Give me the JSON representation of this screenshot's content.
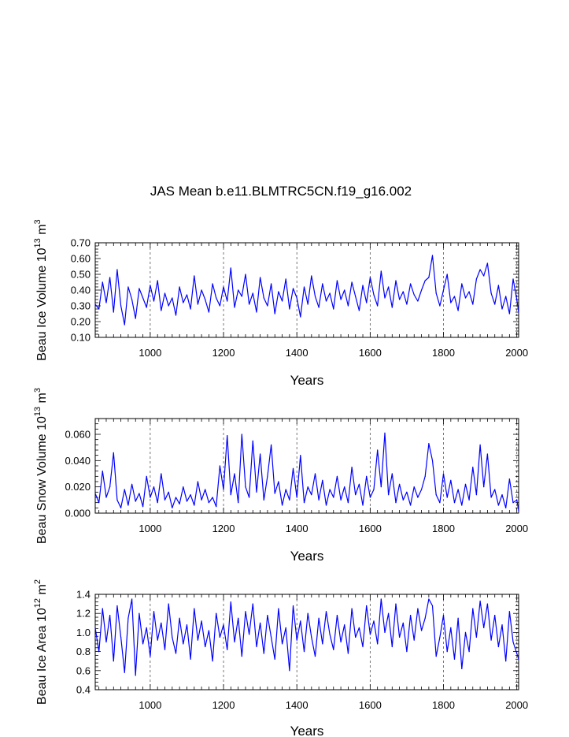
{
  "chart_data": {
    "title": "JAS Mean b.e11.BLMTRC5CN.f19_g16.002",
    "xrange": [
      850,
      2005
    ],
    "panels": [
      {
        "id": "ice-volume",
        "type": "line",
        "ylabel": {
          "base": "Beau Ice Volume 10",
          "exp": "13",
          "unit": " m",
          "unit_exp": "3"
        },
        "xlabel": "Years",
        "ylim": [
          0.1,
          0.7
        ],
        "yticks": [
          0.1,
          0.2,
          0.3,
          0.4,
          0.5,
          0.6,
          0.7
        ],
        "ytick_labels": [
          "0.10",
          "0.20",
          "0.30",
          "0.40",
          "0.50",
          "0.60",
          "0.70"
        ],
        "xticks": [
          1000,
          1200,
          1400,
          1600,
          1800,
          2000
        ],
        "xtick_labels": [
          "1000",
          "1200",
          "1400",
          "1600",
          "1800",
          "2000"
        ],
        "gridlines_x": [
          1000,
          1200,
          1400,
          1600,
          1800,
          2000
        ],
        "series": {
          "name": "Beau Ice Volume",
          "color": "#0000ff",
          "x": [
            850,
            860,
            870,
            880,
            890,
            900,
            910,
            920,
            930,
            940,
            950,
            960,
            970,
            980,
            990,
            1000,
            1010,
            1020,
            1030,
            1040,
            1050,
            1060,
            1070,
            1080,
            1090,
            1100,
            1110,
            1120,
            1130,
            1140,
            1150,
            1160,
            1170,
            1180,
            1190,
            1200,
            1210,
            1220,
            1230,
            1240,
            1250,
            1260,
            1270,
            1280,
            1290,
            1300,
            1310,
            1320,
            1330,
            1340,
            1350,
            1360,
            1370,
            1380,
            1390,
            1400,
            1410,
            1420,
            1430,
            1440,
            1450,
            1460,
            1470,
            1480,
            1490,
            1500,
            1510,
            1520,
            1530,
            1540,
            1550,
            1560,
            1570,
            1580,
            1590,
            1600,
            1610,
            1620,
            1630,
            1640,
            1650,
            1660,
            1670,
            1680,
            1690,
            1700,
            1710,
            1720,
            1730,
            1740,
            1750,
            1760,
            1770,
            1780,
            1790,
            1800,
            1810,
            1820,
            1830,
            1840,
            1850,
            1860,
            1870,
            1880,
            1890,
            1900,
            1910,
            1920,
            1930,
            1940,
            1950,
            1960,
            1970,
            1980,
            1990,
            2000,
            2005
          ],
          "y": [
            0.31,
            0.28,
            0.45,
            0.32,
            0.48,
            0.26,
            0.53,
            0.3,
            0.18,
            0.42,
            0.34,
            0.22,
            0.41,
            0.35,
            0.29,
            0.43,
            0.33,
            0.46,
            0.27,
            0.38,
            0.3,
            0.35,
            0.24,
            0.42,
            0.32,
            0.37,
            0.28,
            0.49,
            0.31,
            0.4,
            0.34,
            0.26,
            0.44,
            0.35,
            0.3,
            0.42,
            0.33,
            0.54,
            0.29,
            0.4,
            0.36,
            0.5,
            0.31,
            0.38,
            0.26,
            0.48,
            0.35,
            0.3,
            0.44,
            0.25,
            0.39,
            0.33,
            0.47,
            0.28,
            0.41,
            0.35,
            0.23,
            0.42,
            0.31,
            0.49,
            0.36,
            0.29,
            0.44,
            0.33,
            0.38,
            0.28,
            0.46,
            0.34,
            0.4,
            0.3,
            0.45,
            0.36,
            0.27,
            0.43,
            0.32,
            0.48,
            0.37,
            0.3,
            0.52,
            0.35,
            0.42,
            0.29,
            0.46,
            0.34,
            0.39,
            0.31,
            0.44,
            0.37,
            0.33,
            0.4,
            0.46,
            0.48,
            0.62,
            0.38,
            0.3,
            0.4,
            0.5,
            0.32,
            0.36,
            0.27,
            0.44,
            0.35,
            0.39,
            0.31,
            0.47,
            0.53,
            0.49,
            0.57,
            0.38,
            0.31,
            0.43,
            0.28,
            0.36,
            0.25,
            0.47,
            0.34,
            0.26
          ]
        }
      },
      {
        "id": "snow-volume",
        "type": "line",
        "ylabel": {
          "base": "Beau Snow Volume 10",
          "exp": "13",
          "unit": " m",
          "unit_exp": "3"
        },
        "xlabel": "Years",
        "ylim": [
          0.0,
          0.072
        ],
        "yticks": [
          0.0,
          0.02,
          0.04,
          0.06
        ],
        "ytick_labels": [
          "0.000",
          "0.020",
          "0.040",
          "0.060"
        ],
        "xticks": [
          1000,
          1200,
          1400,
          1600,
          1800,
          2000
        ],
        "xtick_labels": [
          "1000",
          "1200",
          "1400",
          "1600",
          "1800",
          "2000"
        ],
        "gridlines_x": [
          1000,
          1200,
          1400,
          1600,
          1800,
          2000
        ],
        "series": {
          "name": "Beau Snow Volume",
          "color": "#0000ff",
          "x": [
            850,
            860,
            870,
            880,
            890,
            900,
            910,
            920,
            930,
            940,
            950,
            960,
            970,
            980,
            990,
            1000,
            1010,
            1020,
            1030,
            1040,
            1050,
            1060,
            1070,
            1080,
            1090,
            1100,
            1110,
            1120,
            1130,
            1140,
            1150,
            1160,
            1170,
            1180,
            1190,
            1200,
            1210,
            1220,
            1230,
            1240,
            1250,
            1260,
            1270,
            1280,
            1290,
            1300,
            1310,
            1320,
            1330,
            1340,
            1350,
            1360,
            1370,
            1380,
            1390,
            1400,
            1410,
            1420,
            1430,
            1440,
            1450,
            1460,
            1470,
            1480,
            1490,
            1500,
            1510,
            1520,
            1530,
            1540,
            1550,
            1560,
            1570,
            1580,
            1590,
            1600,
            1610,
            1620,
            1630,
            1640,
            1650,
            1660,
            1670,
            1680,
            1690,
            1700,
            1710,
            1720,
            1730,
            1740,
            1750,
            1760,
            1770,
            1780,
            1790,
            1800,
            1810,
            1820,
            1830,
            1840,
            1850,
            1860,
            1870,
            1880,
            1890,
            1900,
            1910,
            1920,
            1930,
            1940,
            1950,
            1960,
            1970,
            1980,
            1990,
            2000,
            2005
          ],
          "y": [
            0.015,
            0.008,
            0.032,
            0.012,
            0.02,
            0.046,
            0.01,
            0.004,
            0.018,
            0.006,
            0.022,
            0.009,
            0.015,
            0.005,
            0.028,
            0.012,
            0.02,
            0.008,
            0.03,
            0.01,
            0.016,
            0.004,
            0.012,
            0.007,
            0.02,
            0.009,
            0.014,
            0.006,
            0.024,
            0.01,
            0.018,
            0.008,
            0.012,
            0.005,
            0.036,
            0.018,
            0.059,
            0.014,
            0.03,
            0.008,
            0.06,
            0.02,
            0.012,
            0.055,
            0.016,
            0.045,
            0.01,
            0.028,
            0.052,
            0.015,
            0.024,
            0.006,
            0.018,
            0.01,
            0.034,
            0.012,
            0.044,
            0.008,
            0.02,
            0.014,
            0.03,
            0.01,
            0.025,
            0.006,
            0.018,
            0.012,
            0.028,
            0.01,
            0.02,
            0.008,
            0.035,
            0.014,
            0.022,
            0.006,
            0.028,
            0.012,
            0.018,
            0.048,
            0.02,
            0.061,
            0.014,
            0.03,
            0.008,
            0.022,
            0.01,
            0.016,
            0.006,
            0.02,
            0.012,
            0.018,
            0.028,
            0.053,
            0.04,
            0.014,
            0.008,
            0.03,
            0.012,
            0.025,
            0.008,
            0.018,
            0.006,
            0.022,
            0.01,
            0.035,
            0.014,
            0.052,
            0.02,
            0.045,
            0.012,
            0.018,
            0.006,
            0.014,
            0.004,
            0.026,
            0.008,
            0.01,
            0.002
          ]
        }
      },
      {
        "id": "ice-area",
        "type": "line",
        "ylabel": {
          "base": "Beau Ice Area 10",
          "exp": "12",
          "unit": " m",
          "unit_exp": "2"
        },
        "xlabel": "Years",
        "ylim": [
          0.4,
          1.4
        ],
        "yticks": [
          0.4,
          0.6,
          0.8,
          1.0,
          1.2,
          1.4
        ],
        "ytick_labels": [
          "0.4",
          "0.6",
          "0.8",
          "1.0",
          "1.2",
          "1.4"
        ],
        "xticks": [
          1000,
          1200,
          1400,
          1600,
          1800,
          2000
        ],
        "xtick_labels": [
          "1000",
          "1200",
          "1400",
          "1600",
          "1800",
          "2000"
        ],
        "gridlines_x": [
          1000,
          1200,
          1400,
          1600,
          1800,
          2000
        ],
        "series": {
          "name": "Beau Ice Area",
          "color": "#0000ff",
          "x": [
            850,
            860,
            870,
            880,
            890,
            900,
            910,
            920,
            930,
            940,
            950,
            960,
            970,
            980,
            990,
            1000,
            1010,
            1020,
            1030,
            1040,
            1050,
            1060,
            1070,
            1080,
            1090,
            1100,
            1110,
            1120,
            1130,
            1140,
            1150,
            1160,
            1170,
            1180,
            1190,
            1200,
            1210,
            1220,
            1230,
            1240,
            1250,
            1260,
            1270,
            1280,
            1290,
            1300,
            1310,
            1320,
            1330,
            1340,
            1350,
            1360,
            1370,
            1380,
            1390,
            1400,
            1410,
            1420,
            1430,
            1440,
            1450,
            1460,
            1470,
            1480,
            1490,
            1500,
            1510,
            1520,
            1530,
            1540,
            1550,
            1560,
            1570,
            1580,
            1590,
            1600,
            1610,
            1620,
            1630,
            1640,
            1650,
            1660,
            1670,
            1680,
            1690,
            1700,
            1710,
            1720,
            1730,
            1740,
            1750,
            1760,
            1770,
            1780,
            1790,
            1800,
            1810,
            1820,
            1830,
            1840,
            1850,
            1860,
            1870,
            1880,
            1890,
            1900,
            1910,
            1920,
            1930,
            1940,
            1950,
            1960,
            1970,
            1980,
            1990,
            2000,
            2005
          ],
          "y": [
            1.05,
            0.8,
            1.25,
            0.9,
            1.18,
            0.7,
            1.28,
            0.95,
            0.58,
            1.15,
            1.35,
            0.55,
            1.2,
            0.88,
            1.05,
            0.75,
            1.22,
            0.92,
            1.1,
            0.82,
            1.3,
            0.95,
            0.78,
            1.15,
            0.88,
            1.08,
            0.72,
            1.25,
            0.92,
            1.12,
            0.85,
            1.02,
            0.7,
            1.2,
            0.95,
            1.08,
            0.82,
            1.32,
            0.9,
            1.15,
            0.75,
            1.22,
            0.98,
            1.3,
            0.85,
            1.1,
            0.78,
            1.18,
            0.95,
            0.72,
            1.25,
            0.88,
            1.05,
            0.6,
            1.28,
            0.92,
            1.12,
            0.8,
            1.2,
            0.95,
            0.75,
            1.15,
            0.88,
            1.22,
            0.98,
            0.82,
            1.18,
            0.9,
            1.08,
            0.78,
            1.25,
            0.95,
            1.05,
            0.85,
            1.28,
            0.98,
            1.12,
            0.88,
            1.35,
            1.0,
            1.2,
            0.85,
            1.3,
            0.95,
            1.1,
            0.8,
            1.18,
            0.92,
            1.25,
            1.02,
            1.15,
            1.35,
            1.28,
            0.75,
            0.95,
            1.18,
            0.8,
            1.05,
            0.72,
            1.15,
            0.62,
            1.0,
            0.8,
            1.25,
            0.95,
            1.33,
            1.05,
            1.3,
            0.92,
            1.18,
            0.85,
            1.08,
            0.7,
            1.22,
            0.9,
            0.78,
            0.72
          ]
        }
      }
    ]
  }
}
